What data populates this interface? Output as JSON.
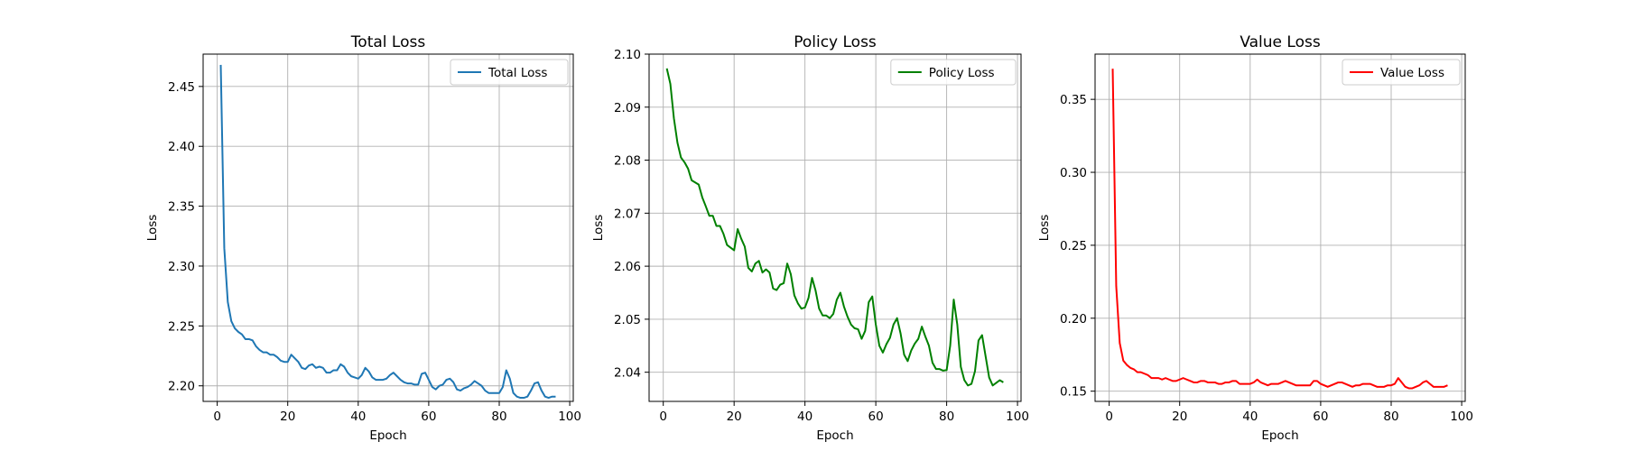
{
  "chart_data": [
    {
      "type": "line",
      "title": "Total Loss",
      "xlabel": "Epoch",
      "ylabel": "Loss",
      "xlim": [
        -4,
        101
      ],
      "ylim": [
        2.187,
        2.477
      ],
      "xticks": [
        0,
        20,
        40,
        60,
        80,
        100
      ],
      "yticks": [
        2.2,
        2.25,
        2.3,
        2.35,
        2.4,
        2.45
      ],
      "ytick_labels": [
        "2.20",
        "2.25",
        "2.30",
        "2.35",
        "2.40",
        "2.45"
      ],
      "grid": true,
      "legend_position": "top-right",
      "color": "#1f77b4",
      "series": [
        {
          "name": "Total Loss",
          "x": [
            1,
            2,
            3,
            4,
            5,
            6,
            7,
            8,
            9,
            10,
            11,
            12,
            13,
            14,
            15,
            16,
            17,
            18,
            19,
            20,
            21,
            22,
            23,
            24,
            25,
            26,
            27,
            28,
            29,
            30,
            31,
            32,
            33,
            34,
            35,
            36,
            37,
            38,
            39,
            40,
            41,
            42,
            43,
            44,
            45,
            46,
            47,
            48,
            49,
            50,
            51,
            52,
            53,
            54,
            55,
            56,
            57,
            58,
            59,
            60,
            61,
            62,
            63,
            64,
            65,
            66,
            67,
            68,
            69,
            70,
            71,
            72,
            73,
            74,
            75,
            76,
            77,
            78,
            79,
            80,
            81,
            82,
            83,
            84,
            85,
            86,
            87,
            88,
            89,
            90,
            91,
            92,
            93,
            94,
            95,
            96
          ],
          "y": [
            2.468,
            2.315,
            2.27,
            2.254,
            2.248,
            2.245,
            2.243,
            2.239,
            2.239,
            2.238,
            2.233,
            2.23,
            2.228,
            2.228,
            2.226,
            2.226,
            2.224,
            2.221,
            2.22,
            2.22,
            2.226,
            2.223,
            2.22,
            2.215,
            2.214,
            2.217,
            2.218,
            2.215,
            2.216,
            2.215,
            2.211,
            2.211,
            2.213,
            2.213,
            2.218,
            2.216,
            2.211,
            2.208,
            2.207,
            2.206,
            2.209,
            2.215,
            2.212,
            2.207,
            2.205,
            2.205,
            2.205,
            2.206,
            2.209,
            2.211,
            2.208,
            2.205,
            2.203,
            2.202,
            2.202,
            2.201,
            2.201,
            2.21,
            2.211,
            2.205,
            2.199,
            2.197,
            2.2,
            2.201,
            2.205,
            2.206,
            2.203,
            2.197,
            2.196,
            2.198,
            2.199,
            2.201,
            2.204,
            2.202,
            2.2,
            2.196,
            2.194,
            2.194,
            2.194,
            2.194,
            2.199,
            2.213,
            2.206,
            2.194,
            2.191,
            2.19,
            2.19,
            2.191,
            2.196,
            2.202,
            2.203,
            2.196,
            2.191,
            2.19,
            2.191,
            2.191
          ]
        }
      ]
    },
    {
      "type": "line",
      "title": "Policy Loss",
      "xlabel": "Epoch",
      "ylabel": "Loss",
      "xlim": [
        -4,
        101
      ],
      "ylim": [
        2.0345,
        2.1
      ],
      "xticks": [
        0,
        20,
        40,
        60,
        80,
        100
      ],
      "yticks": [
        2.04,
        2.05,
        2.06,
        2.07,
        2.08,
        2.09,
        2.1
      ],
      "ytick_labels": [
        "2.04",
        "2.05",
        "2.06",
        "2.07",
        "2.08",
        "2.09",
        "2.10"
      ],
      "grid": true,
      "legend_position": "top-right",
      "color": "#008000",
      "series": [
        {
          "name": "Policy Loss",
          "x": [
            1,
            2,
            3,
            4,
            5,
            6,
            7,
            8,
            9,
            10,
            11,
            12,
            13,
            14,
            15,
            16,
            17,
            18,
            19,
            20,
            21,
            22,
            23,
            24,
            25,
            26,
            27,
            28,
            29,
            30,
            31,
            32,
            33,
            34,
            35,
            36,
            37,
            38,
            39,
            40,
            41,
            42,
            43,
            44,
            45,
            46,
            47,
            48,
            49,
            50,
            51,
            52,
            53,
            54,
            55,
            56,
            57,
            58,
            59,
            60,
            61,
            62,
            63,
            64,
            65,
            66,
            67,
            68,
            69,
            70,
            71,
            72,
            73,
            74,
            75,
            76,
            77,
            78,
            79,
            80,
            81,
            82,
            83,
            84,
            85,
            86,
            87,
            88,
            89,
            90,
            91,
            92,
            93,
            94,
            95,
            96
          ],
          "y": [
            2.0973,
            2.0944,
            2.0879,
            2.0833,
            2.0805,
            2.0796,
            2.0784,
            2.0762,
            2.0758,
            2.0754,
            2.073,
            2.0713,
            2.0695,
            2.0695,
            2.0676,
            2.0676,
            2.0661,
            2.064,
            2.0635,
            2.063,
            2.067,
            2.0652,
            2.0637,
            2.0597,
            2.059,
            2.0605,
            2.061,
            2.0588,
            2.0594,
            2.0588,
            2.0558,
            2.0555,
            2.0565,
            2.0568,
            2.0605,
            2.0585,
            2.0545,
            2.053,
            2.052,
            2.0522,
            2.054,
            2.0578,
            2.0554,
            2.052,
            2.0507,
            2.0507,
            2.0502,
            2.051,
            2.0537,
            2.055,
            2.0524,
            2.0505,
            2.049,
            2.0483,
            2.0481,
            2.0463,
            2.0478,
            2.0532,
            2.0543,
            2.049,
            2.045,
            2.0437,
            2.0453,
            2.0465,
            2.049,
            2.0502,
            2.0473,
            2.0433,
            2.0421,
            2.0441,
            2.0454,
            2.0463,
            2.0486,
            2.0467,
            2.045,
            2.0418,
            2.0406,
            2.0406,
            2.0403,
            2.0404,
            2.045,
            2.0537,
            2.049,
            2.041,
            2.0385,
            2.0375,
            2.0378,
            2.0402,
            2.046,
            2.047,
            2.043,
            2.039,
            2.0375,
            2.038,
            2.0385,
            2.0381
          ]
        }
      ]
    },
    {
      "type": "line",
      "title": "Value Loss",
      "xlabel": "Epoch",
      "ylabel": "Loss",
      "xlim": [
        -4,
        101
      ],
      "ylim": [
        0.143,
        0.381
      ],
      "xticks": [
        0,
        20,
        40,
        60,
        80,
        100
      ],
      "yticks": [
        0.15,
        0.2,
        0.25,
        0.3,
        0.35
      ],
      "ytick_labels": [
        "0.15",
        "0.20",
        "0.25",
        "0.30",
        "0.35"
      ],
      "grid": true,
      "legend_position": "top-right",
      "color": "#ff0000",
      "series": [
        {
          "name": "Value Loss",
          "x": [
            1,
            2,
            3,
            4,
            5,
            6,
            7,
            8,
            9,
            10,
            11,
            12,
            13,
            14,
            15,
            16,
            17,
            18,
            19,
            20,
            21,
            22,
            23,
            24,
            25,
            26,
            27,
            28,
            29,
            30,
            31,
            32,
            33,
            34,
            35,
            36,
            37,
            38,
            39,
            40,
            41,
            42,
            43,
            44,
            45,
            46,
            47,
            48,
            49,
            50,
            51,
            52,
            53,
            54,
            55,
            56,
            57,
            58,
            59,
            60,
            61,
            62,
            63,
            64,
            65,
            66,
            67,
            68,
            69,
            70,
            71,
            72,
            73,
            74,
            75,
            76,
            77,
            78,
            79,
            80,
            81,
            82,
            83,
            84,
            85,
            86,
            87,
            88,
            89,
            90,
            91,
            92,
            93,
            94,
            95,
            96
          ],
          "y": [
            0.371,
            0.222,
            0.183,
            0.171,
            0.168,
            0.166,
            0.165,
            0.163,
            0.163,
            0.162,
            0.161,
            0.159,
            0.159,
            0.159,
            0.158,
            0.159,
            0.158,
            0.157,
            0.157,
            0.158,
            0.159,
            0.158,
            0.157,
            0.156,
            0.156,
            0.157,
            0.157,
            0.156,
            0.156,
            0.156,
            0.155,
            0.155,
            0.156,
            0.156,
            0.157,
            0.157,
            0.155,
            0.155,
            0.155,
            0.155,
            0.156,
            0.158,
            0.156,
            0.155,
            0.154,
            0.155,
            0.155,
            0.155,
            0.156,
            0.157,
            0.156,
            0.155,
            0.154,
            0.154,
            0.154,
            0.154,
            0.154,
            0.157,
            0.157,
            0.155,
            0.154,
            0.153,
            0.154,
            0.155,
            0.156,
            0.156,
            0.155,
            0.154,
            0.153,
            0.154,
            0.154,
            0.155,
            0.155,
            0.155,
            0.154,
            0.153,
            0.153,
            0.153,
            0.154,
            0.154,
            0.155,
            0.159,
            0.156,
            0.153,
            0.152,
            0.152,
            0.153,
            0.154,
            0.156,
            0.157,
            0.155,
            0.153,
            0.153,
            0.153,
            0.153,
            0.154
          ]
        }
      ]
    }
  ]
}
